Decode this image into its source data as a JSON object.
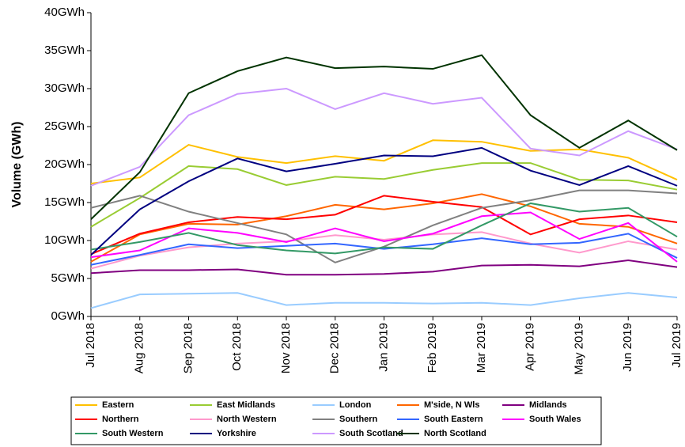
{
  "chart_data": {
    "type": "line",
    "y_label": "Volume (GWh)",
    "categories": [
      "Jul 2018",
      "Aug 2018",
      "Sep 2018",
      "Oct 2018",
      "Nov 2018",
      "Dec 2018",
      "Jan 2019",
      "Feb 2019",
      "Mar 2019",
      "Apr 2019",
      "May 2019",
      "Jun 2019",
      "Jul 2019"
    ],
    "ylim": [
      0,
      40
    ],
    "yticks": [
      {
        "value": 0,
        "label": "0GWh"
      },
      {
        "value": 5,
        "label": "5GWh"
      },
      {
        "value": 10,
        "label": "10GWh"
      },
      {
        "value": 15,
        "label": "15GWh"
      },
      {
        "value": 20,
        "label": "20GWh"
      },
      {
        "value": 25,
        "label": "25GWh"
      },
      {
        "value": 30,
        "label": "30GWh"
      },
      {
        "value": 35,
        "label": "35GWh"
      },
      {
        "value": 40,
        "label": "40GWh"
      }
    ],
    "grid": false,
    "legend": "bottom",
    "series": [
      {
        "name": "Eastern",
        "color": "#ffc000",
        "values": [
          17.5,
          18.3,
          22.6,
          21.0,
          20.2,
          21.1,
          20.5,
          23.2,
          23.0,
          21.8,
          22.0,
          20.9,
          18.0
        ]
      },
      {
        "name": "East Midlands",
        "color": "#99cc33",
        "values": [
          11.8,
          15.6,
          19.8,
          19.4,
          17.3,
          18.4,
          18.1,
          19.3,
          20.2,
          20.2,
          18.0,
          17.9,
          16.7
        ]
      },
      {
        "name": "London",
        "color": "#99ccff",
        "values": [
          1.1,
          2.9,
          3.0,
          3.1,
          1.5,
          1.8,
          1.8,
          1.7,
          1.8,
          1.5,
          2.4,
          3.1,
          2.5
        ]
      },
      {
        "name": "M'side, N Wls",
        "color": "#ff6600",
        "values": [
          7.2,
          10.8,
          12.2,
          12.1,
          13.2,
          14.7,
          14.1,
          14.9,
          16.1,
          14.5,
          12.2,
          11.8,
          9.6
        ]
      },
      {
        "name": "Midlands",
        "color": "#800080",
        "values": [
          5.7,
          6.1,
          6.1,
          6.2,
          5.5,
          5.5,
          5.6,
          5.9,
          6.7,
          6.8,
          6.6,
          7.4,
          6.5
        ]
      },
      {
        "name": "Northern",
        "color": "#ff0000",
        "values": [
          8.2,
          10.9,
          12.4,
          13.1,
          12.8,
          13.4,
          15.9,
          15.1,
          14.4,
          10.8,
          12.8,
          13.3,
          12.4
        ]
      },
      {
        "name": "North Western",
        "color": "#ff99cc",
        "values": [
          6.3,
          8.0,
          9.1,
          9.6,
          9.9,
          10.7,
          10.1,
          10.8,
          11.1,
          9.6,
          8.4,
          9.9,
          8.8
        ]
      },
      {
        "name": "Southern",
        "color": "#808080",
        "values": [
          14.3,
          15.9,
          13.8,
          12.3,
          10.8,
          7.1,
          9.2,
          12.0,
          14.3,
          15.3,
          16.6,
          16.6,
          16.2
        ]
      },
      {
        "name": "South Eastern",
        "color": "#3366ff",
        "values": [
          6.8,
          8.1,
          9.5,
          9.0,
          9.3,
          9.6,
          8.9,
          9.5,
          10.3,
          9.5,
          9.7,
          10.9,
          7.7
        ]
      },
      {
        "name": "South Wales",
        "color": "#ff00ff",
        "values": [
          7.8,
          8.7,
          11.6,
          11.0,
          9.8,
          11.6,
          9.9,
          10.9,
          13.2,
          13.7,
          10.2,
          12.3,
          7.2
        ]
      },
      {
        "name": "South Western",
        "color": "#339966",
        "values": [
          8.8,
          9.8,
          11.0,
          9.4,
          8.7,
          8.3,
          9.1,
          8.9,
          12.0,
          14.9,
          13.8,
          14.3,
          10.5
        ]
      },
      {
        "name": "Yorkshire",
        "color": "#000080",
        "values": [
          8.1,
          14.1,
          17.8,
          20.8,
          19.1,
          20.1,
          21.2,
          21.1,
          22.2,
          19.2,
          17.3,
          19.8,
          17.2
        ]
      },
      {
        "name": "South Scotland",
        "color": "#cc99ff",
        "values": [
          17.2,
          19.7,
          26.5,
          29.3,
          30.0,
          27.3,
          29.4,
          28.0,
          28.8,
          22.1,
          21.2,
          24.4,
          22.0
        ]
      },
      {
        "name": "North Scotland",
        "color": "#003300",
        "values": [
          12.8,
          19.0,
          29.4,
          32.3,
          34.1,
          32.7,
          32.9,
          32.6,
          34.4,
          26.5,
          22.2,
          25.8,
          21.9
        ]
      }
    ]
  }
}
